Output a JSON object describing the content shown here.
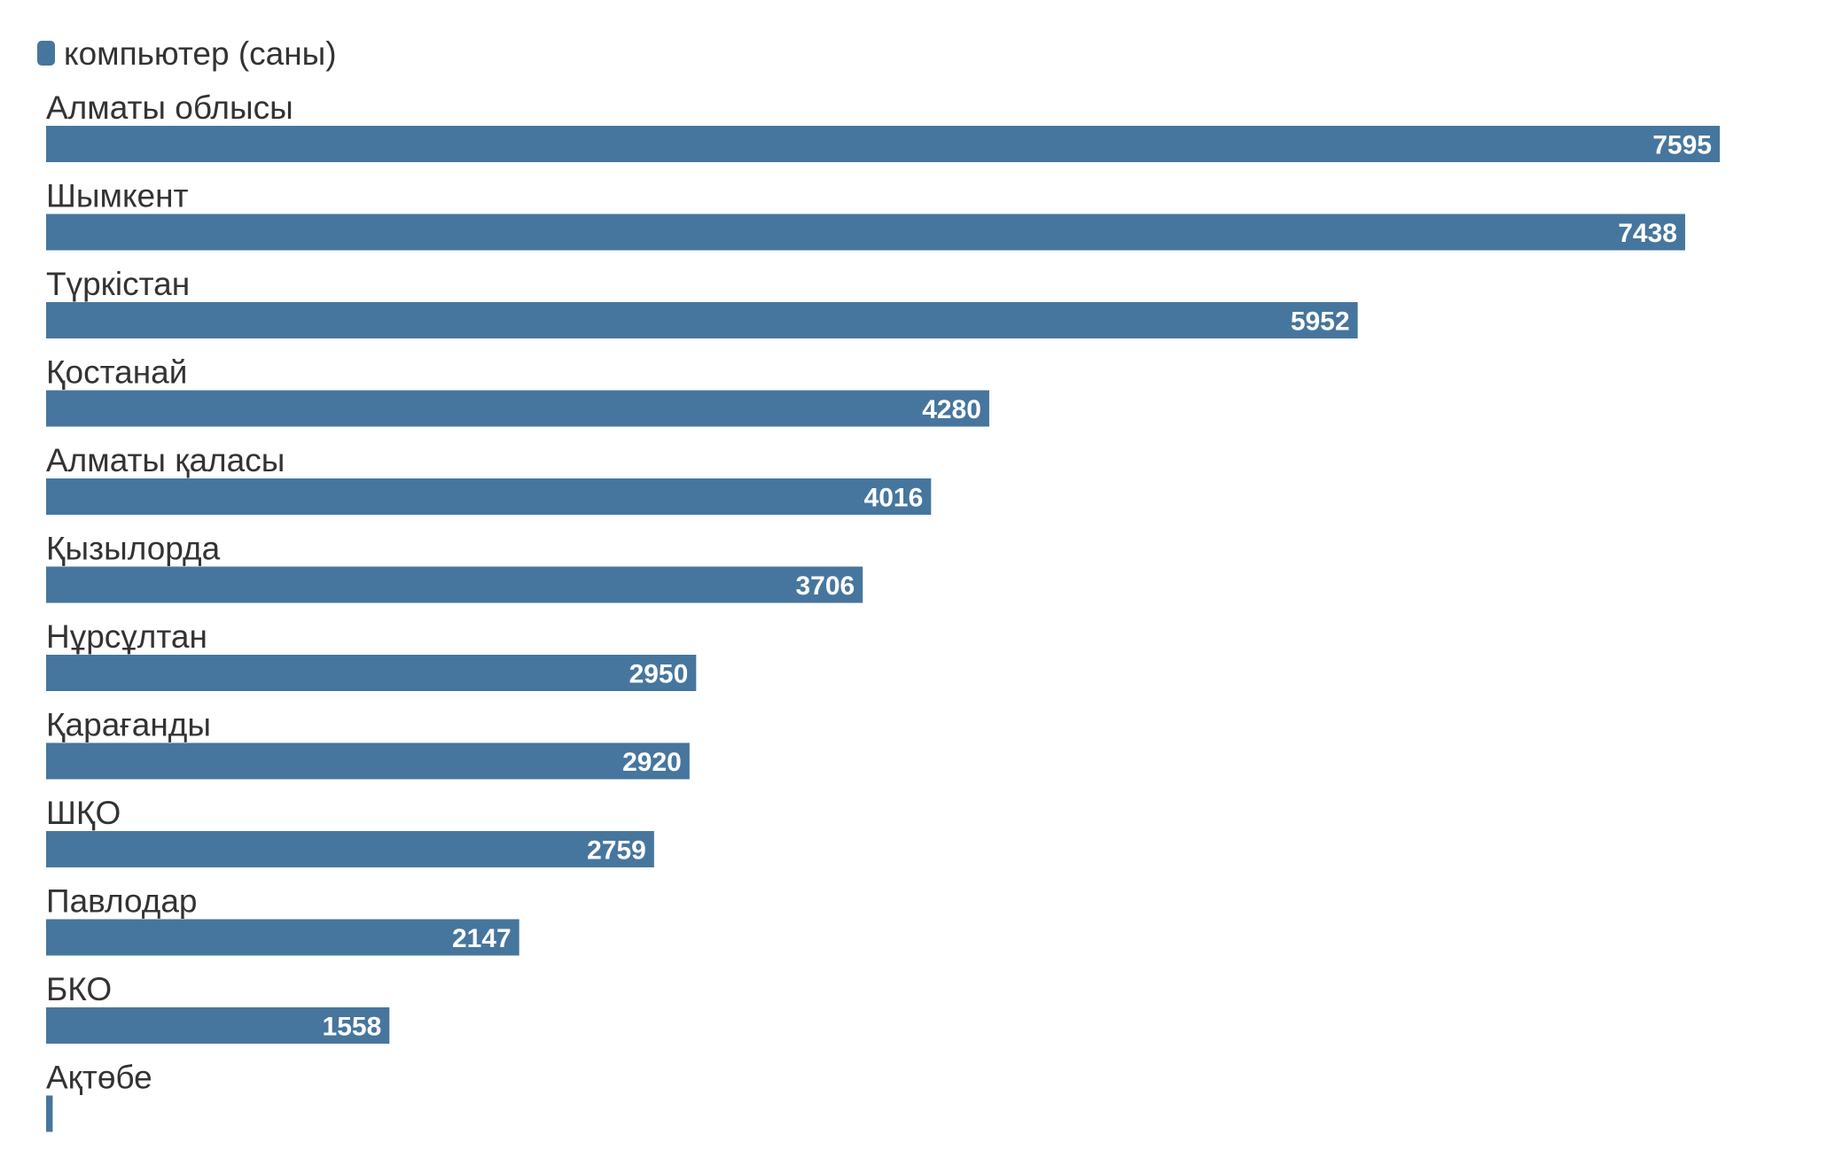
{
  "chart_data": {
    "type": "bar",
    "orientation": "horizontal",
    "categories": [
      "Алматы облысы",
      "Шымкент",
      "Түркістан",
      "Қостанай",
      "Алматы қаласы",
      "Қызылорда",
      "Нұрсұлтан",
      "Қарағанды",
      "ШҚО",
      "Павлодар",
      "БКО",
      "Ақтөбе"
    ],
    "series": [
      {
        "name": "компьютер (саны)",
        "values": [
          7595,
          7438,
          5952,
          4280,
          4016,
          3706,
          2950,
          2920,
          2759,
          2147,
          1558,
          30
        ],
        "value_labels": [
          "7595",
          "7438",
          "5952",
          "4280",
          "4016",
          "3706",
          "2950",
          "2920",
          "2759",
          "2147",
          "1558",
          ""
        ]
      }
    ],
    "xlim": [
      0,
      8000
    ],
    "grid": false,
    "legend_position": "top-left",
    "colors": {
      "bar": "#46769e",
      "value_label": "#ffffff",
      "category_label": "#333333",
      "axis": "#e3e3e3"
    }
  }
}
